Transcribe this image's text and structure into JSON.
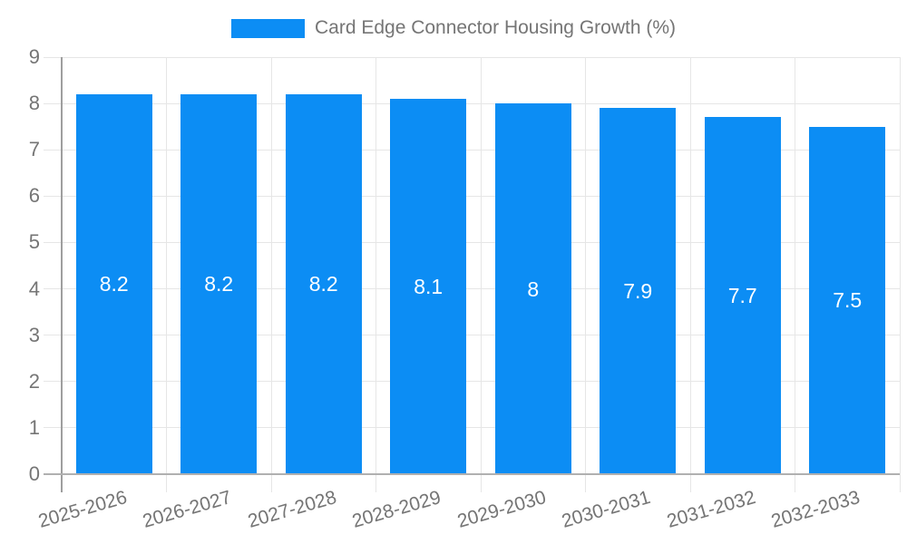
{
  "chart_data": {
    "type": "bar",
    "title": "Card Edge Connector Housing Growth (%)",
    "categories": [
      "2025-2026",
      "2026-2027",
      "2027-2028",
      "2028-2029",
      "2029-2030",
      "2030-2031",
      "2031-2032",
      "2032-2033"
    ],
    "values": [
      8.2,
      8.2,
      8.2,
      8.1,
      8,
      7.9,
      7.7,
      7.5
    ],
    "bar_labels": [
      "8.2",
      "8.2",
      "8.2",
      "8.1",
      "8",
      "7.9",
      "7.7",
      "7.5"
    ],
    "xlabel": "",
    "ylabel": "",
    "ylim": [
      0,
      9
    ],
    "yticks": [
      0,
      1,
      2,
      3,
      4,
      5,
      6,
      7,
      8,
      9
    ],
    "grid": true,
    "legend_position": "top-center",
    "colors": {
      "bar": "#0c8df4",
      "axis_text": "#757575",
      "grid_line": "#e6e6e6",
      "y_axis_line": "#9e9e9e",
      "baseline": "#b0b0b0",
      "value_label": "#ffffff",
      "background": "#ffffff"
    }
  }
}
